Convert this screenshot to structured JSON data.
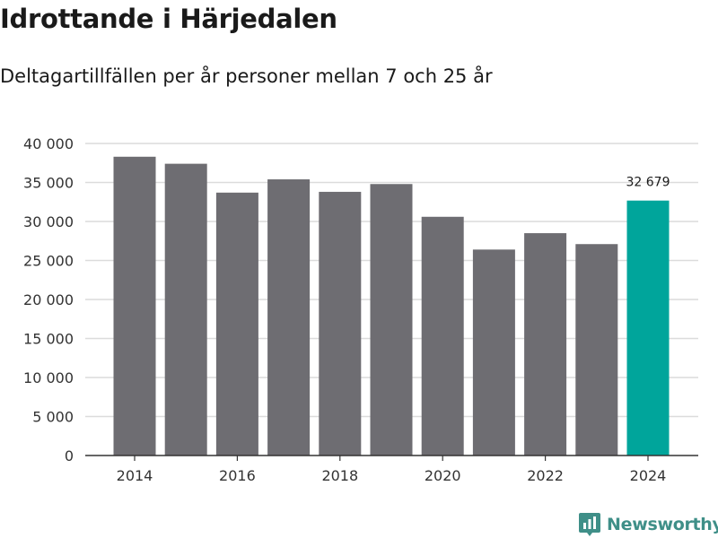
{
  "chart_data": {
    "type": "bar",
    "title": "Idrottande i Härjedalen",
    "subtitle": "Deltagartillfällen per år personer mellan 7 och 25 år",
    "categories": [
      "2014",
      "2015",
      "2016",
      "2017",
      "2018",
      "2019",
      "2020",
      "2021",
      "2022",
      "2023",
      "2024"
    ],
    "values": [
      38300,
      37400,
      33700,
      35400,
      33800,
      34800,
      30600,
      26400,
      28500,
      27100,
      32679
    ],
    "ylim": [
      0,
      40000
    ],
    "yticks": [
      0,
      5000,
      10000,
      15000,
      20000,
      25000,
      30000,
      35000,
      40000
    ],
    "ytick_labels": [
      "0",
      "5 000",
      "10 000",
      "15 000",
      "20 000",
      "25 000",
      "30 000",
      "35 000",
      "40 000"
    ],
    "xtick_labels": [
      "2014",
      "2016",
      "2018",
      "2020",
      "2022",
      "2024"
    ],
    "highlight_index": 10,
    "highlight_label": "32 679",
    "xlabel": "",
    "ylabel": "",
    "grid": true,
    "colors": {
      "bar": "#6e6d72",
      "highlight": "#00a59b",
      "grid": "#dcdcdc",
      "axis": "#333333"
    }
  },
  "brand": {
    "name": "Newsworthy",
    "logo_icon": "newsworthy-logo-icon",
    "color": "#3f8f88"
  }
}
